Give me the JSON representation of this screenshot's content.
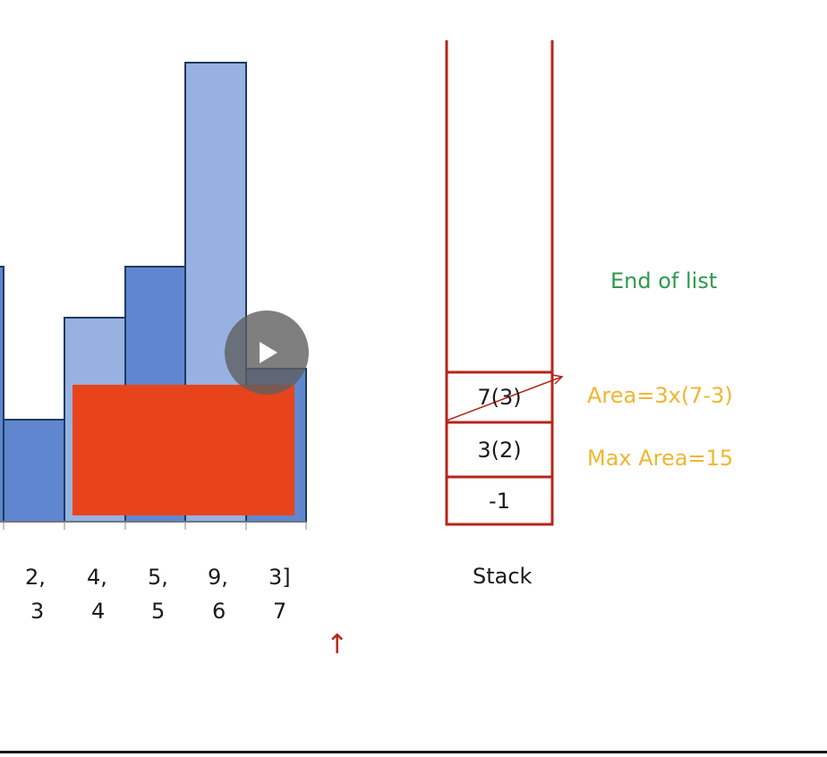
{
  "histogram": {
    "bars": [
      {
        "height": 5,
        "fill": "#5f86cf"
      },
      {
        "height": 2,
        "fill": "#5f86cf"
      },
      {
        "height": 4,
        "fill": "#97b2e0"
      },
      {
        "height": 5,
        "fill": "#5f86cf"
      },
      {
        "height": 9,
        "fill": "#97b2e0"
      },
      {
        "height": 3,
        "fill": "#5f86cf"
      }
    ],
    "values": [
      "2,",
      "4,",
      "5,",
      "9,",
      "3]"
    ],
    "indices": [
      "3",
      "4",
      "5",
      "6",
      "7"
    ],
    "pointer": "↑",
    "highlight_color": "#e8441b",
    "bar_stroke": "#1f3a5f"
  },
  "stack": {
    "cells": [
      "7(3)",
      "3(2)",
      "-1"
    ],
    "label": "Stack",
    "wall_color": "#b5261a"
  },
  "annotations": {
    "end_of_list": "End of list",
    "area": "Area=3x(7-3)",
    "max_area": "Max Area=15"
  },
  "video": {
    "control": "play-icon"
  }
}
